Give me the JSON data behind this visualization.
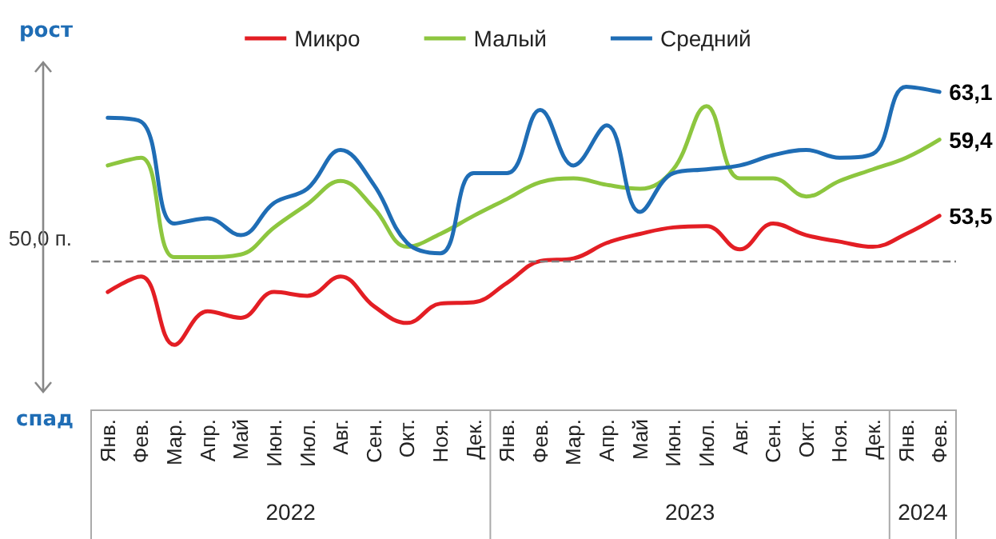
{
  "chart_data": {
    "type": "line",
    "categories": [
      "Янв.",
      "Фев.",
      "Мар.",
      "Апр.",
      "Май",
      "Июн.",
      "Июл.",
      "Авг.",
      "Сен.",
      "Окт.",
      "Ноя.",
      "Дек.",
      "Янв.",
      "Фев.",
      "Мар.",
      "Апр.",
      "Май",
      "Июн.",
      "Июл.",
      "Авг.",
      "Сен.",
      "Окт.",
      "Ноя.",
      "Дек.",
      "Янв.",
      "Фев."
    ],
    "series": [
      {
        "name": "Микро",
        "color": "#e31e24",
        "values": [
          47.6,
          48.8,
          43.5,
          46.1,
          45.6,
          47.6,
          47.3,
          48.8,
          46.5,
          45.2,
          46.7,
          46.8,
          48.3,
          50.0,
          50.2,
          51.4,
          52.1,
          52.6,
          52.7,
          50.9,
          52.9,
          52.0,
          51.5,
          51.1,
          52.1,
          53.5
        ],
        "value_labels": [
          null,
          null,
          null,
          null,
          null,
          null,
          null,
          null,
          null,
          null,
          null,
          null,
          null,
          null,
          null,
          null,
          null,
          null,
          null,
          null,
          null,
          null,
          null,
          null,
          null,
          "53,5"
        ]
      },
      {
        "name": "Малый",
        "color": "#8dc63f",
        "values": [
          57.4,
          58.0,
          50.3,
          50.3,
          50.5,
          52.6,
          54.4,
          56.2,
          54.1,
          51.1,
          52.1,
          53.5,
          54.8,
          56.1,
          56.4,
          55.9,
          55.6,
          57.1,
          62.0,
          56.4,
          56.4,
          55.0,
          56.2,
          57.1,
          58.0,
          59.4
        ],
        "value_labels": [
          null,
          null,
          null,
          null,
          null,
          null,
          null,
          null,
          null,
          null,
          null,
          null,
          null,
          null,
          null,
          null,
          null,
          null,
          null,
          null,
          null,
          null,
          null,
          null,
          null,
          "59,4"
        ]
      },
      {
        "name": "Средний",
        "color": "#1f6db5",
        "values": [
          61.1,
          60.8,
          52.9,
          53.3,
          52.0,
          54.5,
          55.6,
          58.6,
          55.9,
          51.4,
          50.6,
          56.8,
          56.8,
          61.7,
          57.4,
          60.5,
          53.8,
          56.8,
          57.1,
          57.4,
          58.2,
          58.6,
          58.0,
          58.3,
          63.5,
          63.1
        ],
        "value_labels": [
          null,
          null,
          null,
          null,
          null,
          null,
          null,
          null,
          null,
          null,
          null,
          null,
          null,
          null,
          null,
          null,
          null,
          null,
          null,
          null,
          null,
          null,
          null,
          null,
          null,
          "63,1"
        ]
      }
    ],
    "ref_lines": [
      {
        "axis": "y",
        "value": 50,
        "label": "50,0 п.",
        "color": "#808080",
        "line_style": "dashed"
      }
    ],
    "annotations": [
      "рост",
      "спад",
      "2022",
      "2023",
      "2024"
    ],
    "legend": "top",
    "grid": false,
    "marker": "none",
    "line_style": "solid"
  }
}
